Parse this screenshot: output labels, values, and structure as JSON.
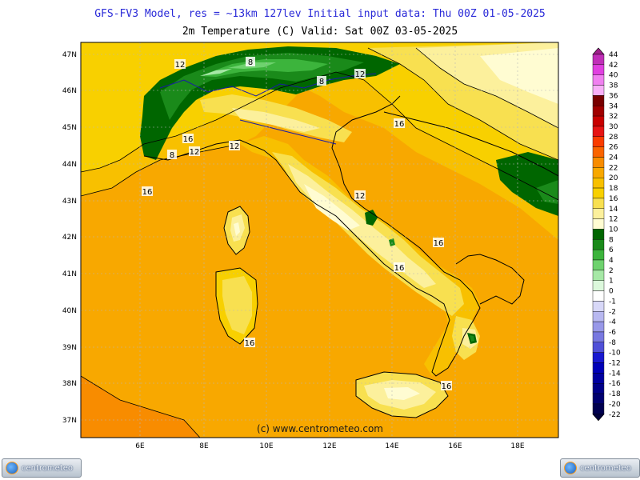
{
  "header": {
    "line1": "GFS-FV3 Model, res = ~13km 127lev    Initial input data: Thu 00Z 01-05-2025",
    "line2": "2m Temperature (C)  Valid: Sat 00Z 03-05-2025"
  },
  "axes": {
    "lat_labels": [
      "47N",
      "46N",
      "45N",
      "44N",
      "43N",
      "42N",
      "41N",
      "40N",
      "39N",
      "38N",
      "37N"
    ],
    "lon_labels": [
      "6E",
      "8E",
      "10E",
      "12E",
      "14E",
      "16E",
      "18E"
    ]
  },
  "contour_labels": [
    "12",
    "8",
    "8",
    "12",
    "16",
    "16",
    "12",
    "8",
    "12",
    "16",
    "12",
    "16",
    "16",
    "16",
    "16"
  ],
  "credit": "(c) www.centrometeo.com",
  "logos": {
    "left": "centrometeo",
    "right": "centrometeo"
  },
  "legend": {
    "levels": [
      "44",
      "42",
      "40",
      "38",
      "36",
      "34",
      "32",
      "30",
      "28",
      "26",
      "24",
      "22",
      "20",
      "18",
      "16",
      "14",
      "12",
      "10",
      "8",
      "6",
      "4",
      "2",
      "1",
      "0",
      "-1",
      "-2",
      "-4",
      "-6",
      "-8",
      "-10",
      "-12",
      "-14",
      "-16",
      "-18",
      "-20",
      "-22"
    ],
    "colors": [
      "#a0208c",
      "#c02fb8",
      "#e040e0",
      "#f080f0",
      "#f8b0f8",
      "#780000",
      "#a00000",
      "#c80000",
      "#e61414",
      "#fa3c00",
      "#fa6400",
      "#f88c00",
      "#f8a800",
      "#f8c000",
      "#f8d000",
      "#f8e050",
      "#fcf09c",
      "#fffcd2",
      "#006600",
      "#1a8a1a",
      "#3cb43c",
      "#6ed26e",
      "#a6e8a6",
      "#dcf8dc",
      "#ffffff",
      "#d8d8f8",
      "#b8b8f0",
      "#9898e8",
      "#7878e0",
      "#5050d8",
      "#1818d0",
      "#0000b8",
      "#0000a0",
      "#000088",
      "#000070",
      "#000050",
      "#00003c"
    ]
  }
}
